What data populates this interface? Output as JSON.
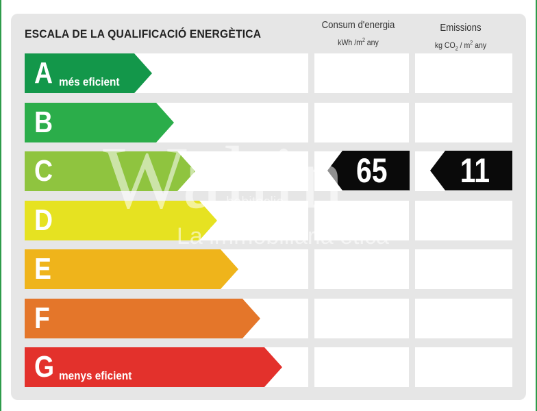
{
  "title": "ESCALA DE LA QUALIFICACIÓ ENERGÈTICA",
  "columns": {
    "energy": {
      "label": "Consum d'energia",
      "unit_prefix": "kWh /m",
      "unit_sup": "2",
      "unit_suffix": " any"
    },
    "emissions": {
      "label": "Emissions",
      "unit_prefix": "kg CO",
      "unit_sub": "2",
      "unit_mid": " / m",
      "unit_sup": "2",
      "unit_suffix": " any"
    }
  },
  "classes": [
    {
      "letter": "A",
      "note": "més eficient",
      "color": "#13974a"
    },
    {
      "letter": "B",
      "note": "",
      "color": "#2bad4a"
    },
    {
      "letter": "C",
      "note": "",
      "color": "#8fc43f"
    },
    {
      "letter": "D",
      "note": "",
      "color": "#e6e221"
    },
    {
      "letter": "E",
      "note": "",
      "color": "#efb41b"
    },
    {
      "letter": "F",
      "note": "",
      "color": "#e4762a"
    },
    {
      "letter": "G",
      "note": "menys eficient",
      "color": "#e3312c"
    }
  ],
  "rating": {
    "class": "C",
    "energy_value": "65",
    "emissions_value": "11"
  },
  "watermark": {
    "main": "Wahin",
    "sub": "habitaclia",
    "tagline": "La immobiliària ètica"
  }
}
